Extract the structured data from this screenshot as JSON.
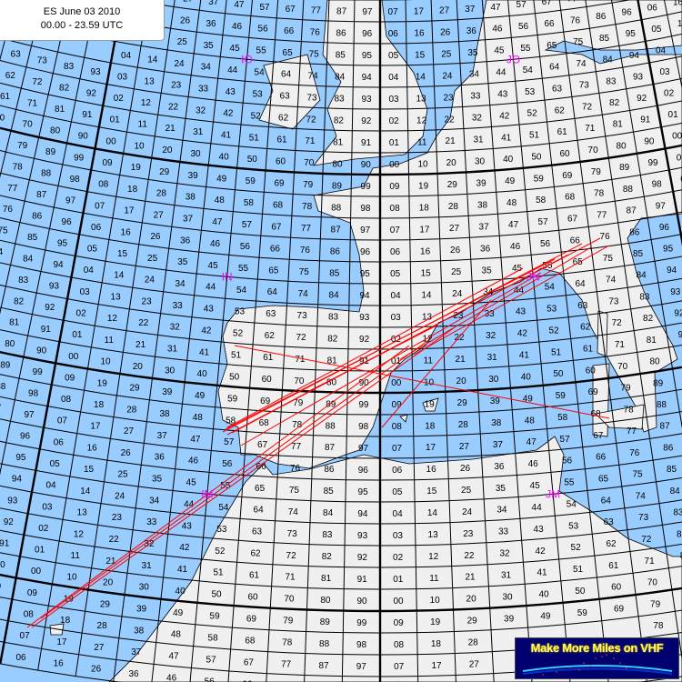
{
  "title": {
    "line1": "ES June 03 2010",
    "line2": "00.00 - 23.59 UTC"
  },
  "grid": {
    "square_digits": "0123456789",
    "fields": [
      {
        "name": "IO",
        "color": "#ff00ff"
      },
      {
        "name": "JO",
        "color": "#ff00ff"
      },
      {
        "name": "IN",
        "color": "#ff00ff"
      },
      {
        "name": "JN",
        "color": "#ff00ff"
      },
      {
        "name": "IM",
        "color": "#ff00ff"
      },
      {
        "name": "JM",
        "color": "#ff00ff"
      }
    ]
  },
  "colors": {
    "sea": "#99ccff",
    "land": "#f0f0f0",
    "path": "#ff0000",
    "field_label": "#ff00ff"
  },
  "logo": {
    "text": "Make More Miles on VHF"
  }
}
